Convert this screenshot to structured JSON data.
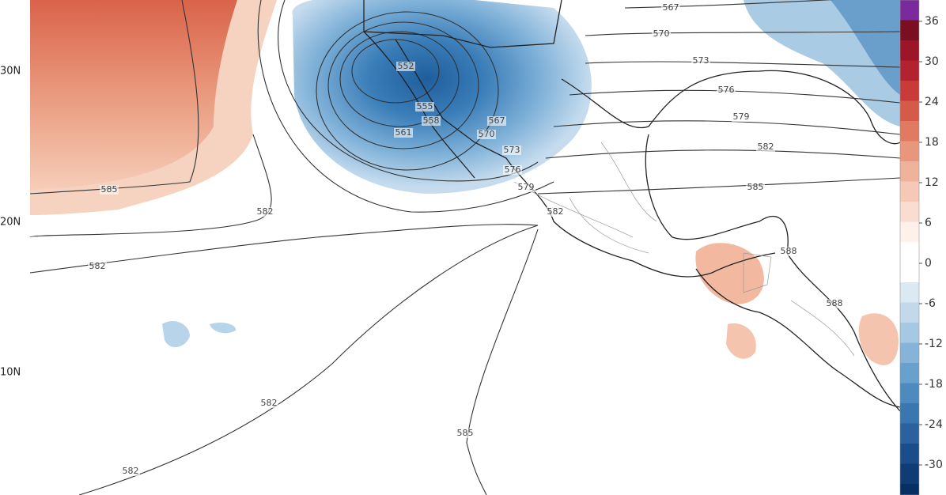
{
  "map": {
    "lat_labels": [
      "30N",
      "20N",
      "10N"
    ],
    "contour_labels": [
      "567",
      "570",
      "573",
      "576",
      "579",
      "582",
      "585",
      "588",
      "588",
      "552",
      "555",
      "558",
      "561",
      "567",
      "570",
      "573",
      "576",
      "579",
      "582",
      "585",
      "582",
      "582",
      "582",
      "585",
      "582"
    ],
    "colorbar": {
      "ticks": [
        36,
        30,
        24,
        18,
        12,
        6,
        0,
        -6,
        -12,
        -18,
        -24,
        -30
      ]
    }
  }
}
